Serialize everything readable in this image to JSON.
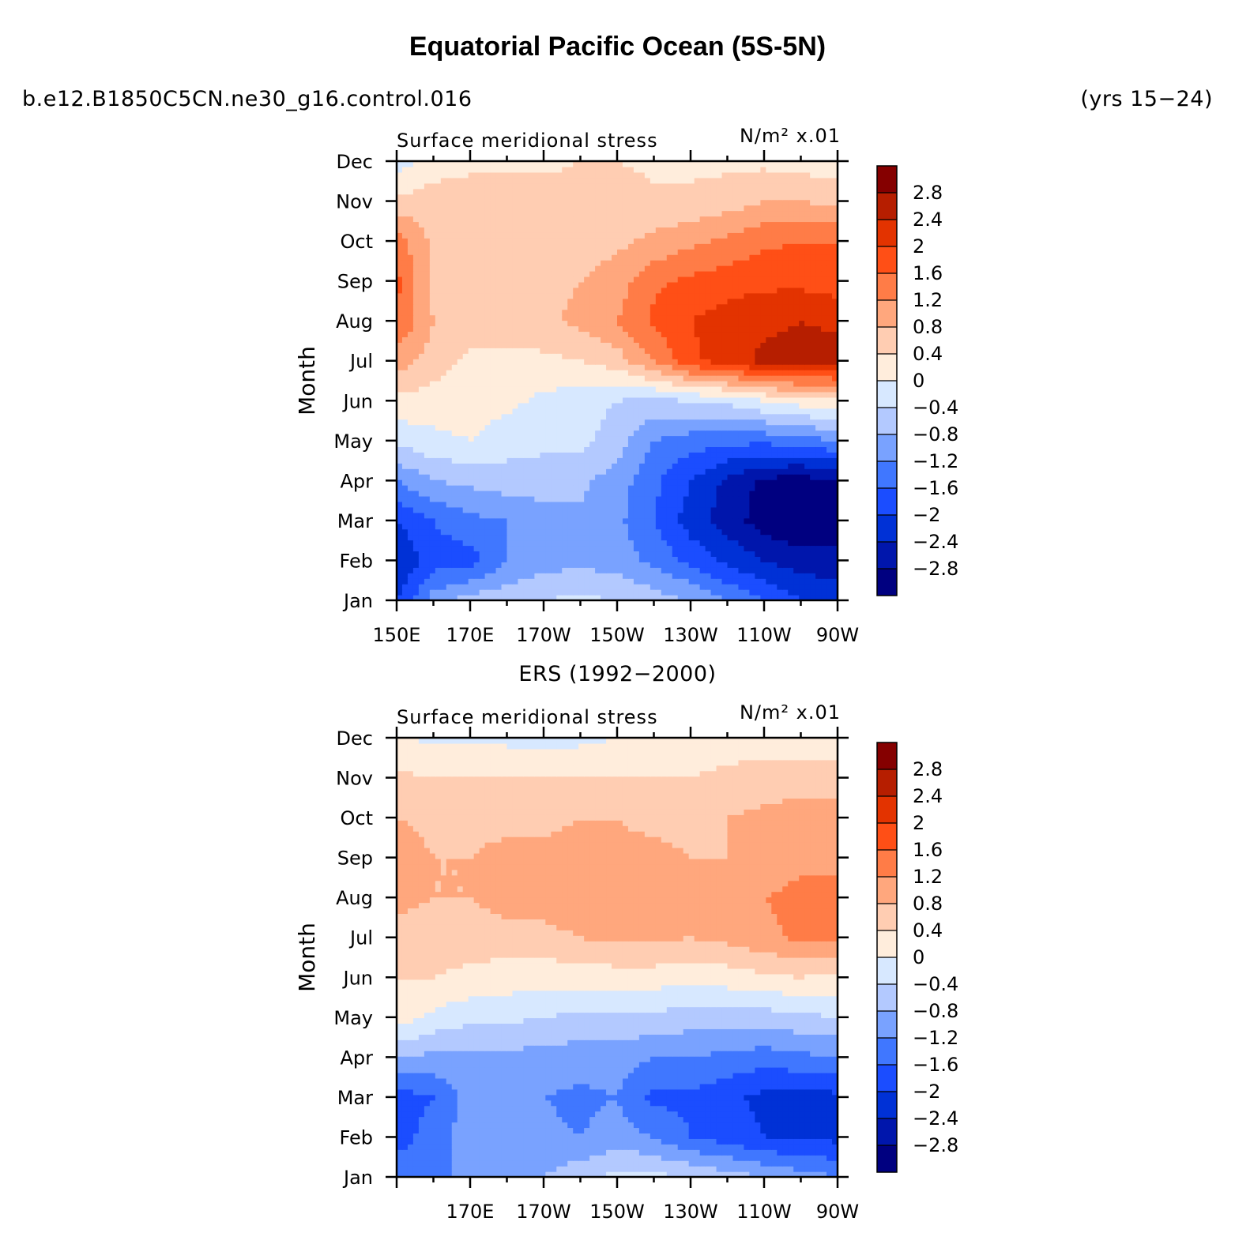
{
  "header": {
    "title": "Equatorial Pacific Ocean (5S-5N)",
    "case": "b.e12.B1850C5CN.ne30_g16.control.016",
    "years": "(yrs 15−24)",
    "subtitle": "ERS (1992−2000)"
  },
  "chart_data": [
    {
      "type": "heatmap",
      "panel": "model",
      "left_label": "Surface meridional stress",
      "right_label": "N/m² x.01",
      "ylabel": "Month",
      "y_categories": [
        "Jan",
        "Feb",
        "Mar",
        "Apr",
        "May",
        "Jun",
        "Jul",
        "Aug",
        "Sep",
        "Oct",
        "Nov",
        "Dec"
      ],
      "x_tick_labels": [
        "150E",
        "170E",
        "170W",
        "150W",
        "130W",
        "110W",
        "90W"
      ],
      "x_range": [
        150,
        270
      ],
      "x_values": [
        150,
        160,
        170,
        180,
        190,
        200,
        210,
        220,
        230,
        240,
        250,
        260,
        270
      ],
      "z": [
        [
          -2.0,
          -1.0,
          -0.6,
          -0.5,
          -0.4,
          -0.3,
          -0.4,
          -0.6,
          -0.8,
          -1.2,
          -1.6,
          -2.0,
          -2.2
        ],
        [
          -2.4,
          -1.8,
          -1.8,
          -1.2,
          -1.0,
          -0.9,
          -1.0,
          -1.3,
          -1.7,
          -2.1,
          -2.4,
          -2.6,
          -2.6
        ],
        [
          -2.0,
          -1.6,
          -1.3,
          -1.2,
          -1.0,
          -0.9,
          -1.1,
          -1.6,
          -2.2,
          -2.6,
          -3.0,
          -3.2,
          -3.2
        ],
        [
          -1.2,
          -0.8,
          -0.7,
          -0.6,
          -0.6,
          -0.7,
          -1.0,
          -1.5,
          -2.0,
          -2.5,
          -2.9,
          -3.0,
          -2.8
        ],
        [
          -0.3,
          -0.1,
          0.0,
          -0.2,
          -0.3,
          -0.3,
          -0.6,
          -1.2,
          -1.4,
          -1.5,
          -1.5,
          -1.4,
          -1.2
        ],
        [
          0.3,
          0.2,
          0.2,
          0.1,
          -0.1,
          -0.2,
          -0.4,
          -0.5,
          -0.4,
          -0.3,
          0.0,
          0.2,
          0.3
        ],
        [
          1.0,
          0.6,
          0.3,
          0.3,
          0.3,
          0.4,
          0.6,
          1.2,
          1.9,
          2.2,
          2.5,
          2.6,
          2.6
        ],
        [
          1.6,
          0.8,
          0.6,
          0.6,
          0.7,
          0.9,
          1.2,
          1.7,
          2.0,
          2.2,
          2.3,
          2.4,
          2.3
        ],
        [
          1.7,
          0.7,
          0.6,
          0.6,
          0.7,
          0.8,
          1.0,
          1.5,
          1.7,
          1.8,
          1.9,
          1.9,
          1.8
        ],
        [
          1.4,
          0.7,
          0.6,
          0.6,
          0.6,
          0.6,
          0.7,
          0.9,
          1.1,
          1.3,
          1.5,
          1.6,
          1.6
        ],
        [
          0.5,
          0.6,
          0.6,
          0.6,
          0.6,
          0.6,
          0.6,
          0.5,
          0.5,
          0.6,
          0.8,
          0.8,
          0.7
        ],
        [
          -0.2,
          0.2,
          0.3,
          0.3,
          0.3,
          0.4,
          0.4,
          0.3,
          0.3,
          0.3,
          0.3,
          0.2,
          0.2
        ]
      ]
    },
    {
      "type": "heatmap",
      "panel": "observations",
      "title": "ERS (1992−2000)",
      "left_label": "Surface meridional stress",
      "right_label": "N/m² x.01",
      "ylabel": "Month",
      "y_categories": [
        "Jan",
        "Feb",
        "Mar",
        "Apr",
        "May",
        "Jun",
        "Jul",
        "Aug",
        "Sep",
        "Oct",
        "Nov",
        "Dec"
      ],
      "x_tick_labels": [
        "170E",
        "170W",
        "150W",
        "130W",
        "110W",
        "90W"
      ],
      "x_range": [
        150,
        270
      ],
      "x_values": [
        150,
        160,
        170,
        180,
        190,
        200,
        210,
        220,
        230,
        240,
        250,
        260,
        270
      ],
      "z": [
        [
          -1.3,
          -1.3,
          -1.1,
          -0.9,
          -0.8,
          -0.5,
          -0.3,
          -0.3,
          -0.4,
          -0.6,
          -0.8,
          -1.0,
          -1.2
        ],
        [
          -1.8,
          -1.4,
          -1.0,
          -0.8,
          -1.1,
          -1.2,
          -1.0,
          -1.2,
          -1.6,
          -1.8,
          -2.0,
          -2.1,
          -2.1
        ],
        [
          -1.8,
          -1.6,
          -1.0,
          -0.8,
          -1.2,
          -1.3,
          -1.2,
          -1.7,
          -1.7,
          -1.9,
          -2.1,
          -2.2,
          -2.1
        ],
        [
          -0.8,
          -0.9,
          -0.9,
          -0.9,
          -1.0,
          -1.0,
          -1.0,
          -1.2,
          -1.2,
          -1.3,
          -1.4,
          -1.3,
          -1.2
        ],
        [
          0.2,
          -0.1,
          -0.3,
          -0.3,
          -0.4,
          -0.5,
          -0.5,
          -0.5,
          -0.6,
          -0.6,
          -0.6,
          -0.5,
          -0.4
        ],
        [
          0.4,
          0.4,
          0.3,
          0.2,
          0.2,
          0.2,
          0.2,
          0.2,
          0.1,
          0.2,
          0.3,
          0.4,
          0.3
        ],
        [
          0.7,
          0.6,
          0.6,
          0.6,
          0.6,
          0.8,
          0.9,
          0.9,
          0.8,
          0.9,
          1.1,
          1.3,
          1.3
        ],
        [
          0.9,
          0.8,
          0.8,
          1.0,
          1.1,
          1.2,
          1.1,
          1.0,
          1.0,
          1.0,
          1.2,
          1.3,
          1.3
        ],
        [
          1.0,
          0.8,
          0.8,
          0.9,
          0.9,
          1.0,
          0.9,
          0.9,
          0.8,
          0.8,
          1.0,
          1.1,
          1.1
        ],
        [
          0.8,
          0.7,
          0.7,
          0.7,
          0.7,
          0.8,
          0.8,
          0.7,
          0.7,
          0.8,
          0.9,
          1.0,
          1.0
        ],
        [
          0.5,
          0.4,
          0.4,
          0.4,
          0.4,
          0.4,
          0.4,
          0.4,
          0.4,
          0.5,
          0.6,
          0.6,
          0.6
        ],
        [
          0.1,
          -0.1,
          -0.1,
          -0.1,
          -0.2,
          -0.1,
          0.0,
          0.1,
          0.1,
          0.2,
          0.2,
          0.2,
          0.2
        ]
      ]
    }
  ],
  "colorbar": {
    "levels": [
      -3.2,
      -2.8,
      -2.4,
      -2.0,
      -1.6,
      -1.2,
      -0.8,
      -0.4,
      0.0,
      0.4,
      0.8,
      1.2,
      1.6,
      2.0,
      2.4,
      2.8,
      3.2
    ],
    "labels": [
      "2.8",
      "2.4",
      "2",
      "1.6",
      "1.2",
      "0.8",
      "0.4",
      "0",
      "−0.4",
      "−0.8",
      "−1.2",
      "−1.6",
      "−2",
      "−2.4",
      "−2.8"
    ],
    "colors": [
      "#000080",
      "#0016ac",
      "#0031d6",
      "#1b4dff",
      "#4077ff",
      "#79a2ff",
      "#b3c9ff",
      "#d7e8ff",
      "#ffeddc",
      "#ffcdb2",
      "#ffa77d",
      "#ff7c47",
      "#ff4f16",
      "#e33300",
      "#b61e00",
      "#850000"
    ]
  }
}
